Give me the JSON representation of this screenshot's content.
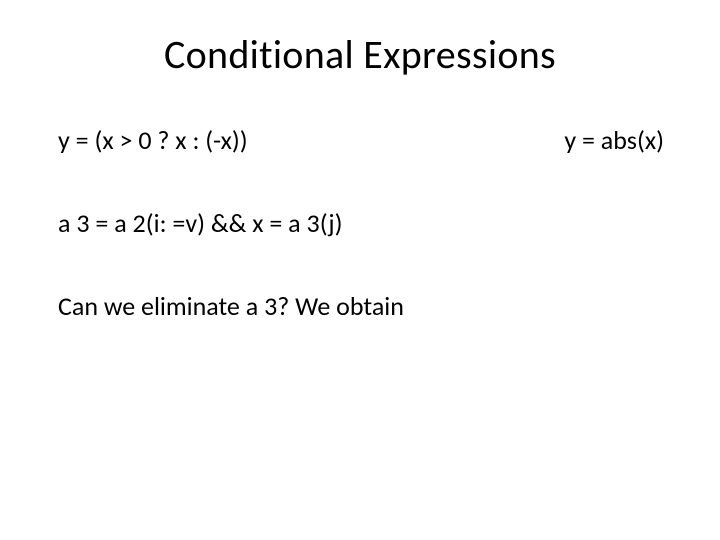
{
  "slide": {
    "title": "Conditional Expressions",
    "line1_left": "y = (x > 0 ? x : (-x))",
    "line1_right": "y = abs(x)",
    "line2": "a 3 = a 2(i: =v) &&   x = a 3(j)",
    "line3": "Can we eliminate a 3? We obtain"
  },
  "style": {
    "background_color": "#ffffff",
    "text_color": "#000000",
    "title_fontsize": 40,
    "body_fontsize": 26,
    "font_family": "Calibri"
  }
}
